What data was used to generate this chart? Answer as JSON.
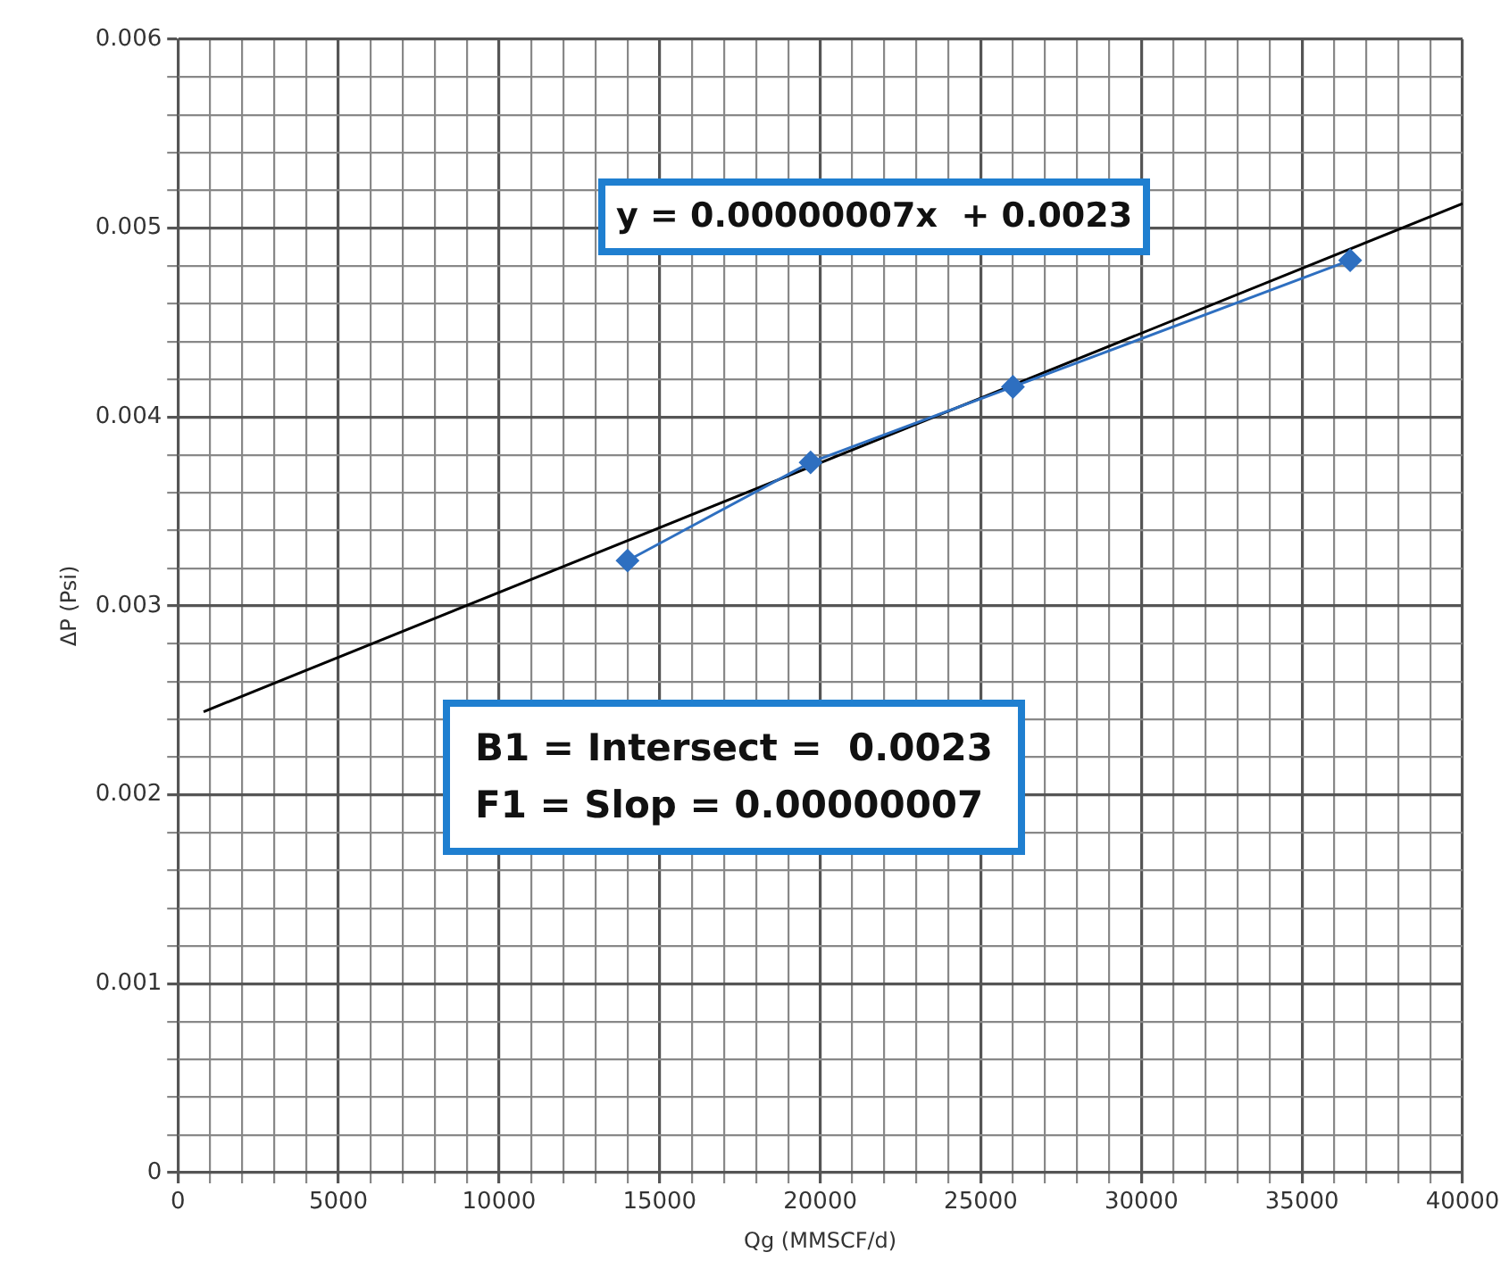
{
  "chart_data": {
    "type": "line",
    "xlabel": "Qg (MMSCF/d)",
    "ylabel": "ΔP (Psi)",
    "xlim": [
      0,
      40000
    ],
    "ylim": [
      0,
      0.006
    ],
    "xticks": [
      0,
      {
        "value": 1000,
        "label": null
      },
      {
        "value": 2000,
        "label": null
      },
      {
        "value": 3000,
        "label": null
      },
      {
        "value": 4000,
        "label": null
      },
      5000,
      {
        "value": 6000,
        "label": null
      },
      {
        "value": 7000,
        "label": null
      },
      {
        "value": 8000,
        "label": null
      },
      {
        "value": 9000,
        "label": null
      },
      10000,
      {
        "value": 11000,
        "label": null
      },
      {
        "value": 12000,
        "label": null
      },
      {
        "value": 13000,
        "label": null
      },
      {
        "value": 14000,
        "label": null
      },
      15000,
      {
        "value": 16000,
        "label": null
      },
      {
        "value": 17000,
        "label": null
      },
      {
        "value": 18000,
        "label": null
      },
      {
        "value": 19000,
        "label": null
      },
      20000,
      {
        "value": 21000,
        "label": null
      },
      {
        "value": 22000,
        "label": null
      },
      {
        "value": 23000,
        "label": null
      },
      {
        "value": 24000,
        "label": null
      },
      25000,
      {
        "value": 26000,
        "label": null
      },
      {
        "value": 27000,
        "label": null
      },
      {
        "value": 28000,
        "label": null
      },
      {
        "value": 29000,
        "label": null
      },
      30000,
      {
        "value": 31000,
        "label": null
      },
      {
        "value": 32000,
        "label": null
      },
      {
        "value": 33000,
        "label": null
      },
      {
        "value": 34000,
        "label": null
      },
      35000,
      {
        "value": 36000,
        "label": null
      },
      {
        "value": 37000,
        "label": null
      },
      {
        "value": 38000,
        "label": null
      },
      {
        "value": 39000,
        "label": null
      },
      40000
    ],
    "yticks": [
      0,
      {
        "value": 0.0002,
        "label": null
      },
      {
        "value": 0.0004,
        "label": null
      },
      {
        "value": 0.0006,
        "label": null
      },
      {
        "value": 0.0008,
        "label": null
      },
      0.001,
      {
        "value": 0.0012,
        "label": null
      },
      {
        "value": 0.0014,
        "label": null
      },
      {
        "value": 0.0016,
        "label": null
      },
      {
        "value": 0.0018,
        "label": null
      },
      0.002,
      {
        "value": 0.0022,
        "label": null
      },
      {
        "value": 0.0024,
        "label": null
      },
      {
        "value": 0.0026,
        "label": null
      },
      {
        "value": 0.0028,
        "label": null
      },
      0.003,
      {
        "value": 0.0032,
        "label": null
      },
      {
        "value": 0.0034,
        "label": null
      },
      {
        "value": 0.0036,
        "label": null
      },
      {
        "value": 0.0038,
        "label": null
      },
      0.004,
      {
        "value": 0.0042,
        "label": null
      },
      {
        "value": 0.0044,
        "label": null
      },
      {
        "value": 0.0046,
        "label": null
      },
      {
        "value": 0.0048,
        "label": null
      },
      0.005,
      {
        "value": 0.0052,
        "label": null
      },
      {
        "value": 0.0054,
        "label": null
      },
      {
        "value": 0.0056,
        "label": null
      },
      {
        "value": 0.0058,
        "label": null
      },
      0.006
    ],
    "grid": true,
    "legend": false,
    "series": [
      {
        "color": "#2e6fc0",
        "marker": "diamond",
        "x": [
          14000,
          19700,
          26000,
          36500
        ],
        "values": [
          0.00324,
          0.00376,
          0.00416,
          0.00483
        ]
      },
      {
        "color": "#000000",
        "marker": "none",
        "x": [
          800,
          40000
        ],
        "values": [
          0.00244,
          0.00513
        ]
      }
    ],
    "annotations": [
      "y = 0.00000007x  + 0.0023",
      "B1 = Intersect =  0.0023\nF1 = Slop = 0.00000007"
    ]
  }
}
